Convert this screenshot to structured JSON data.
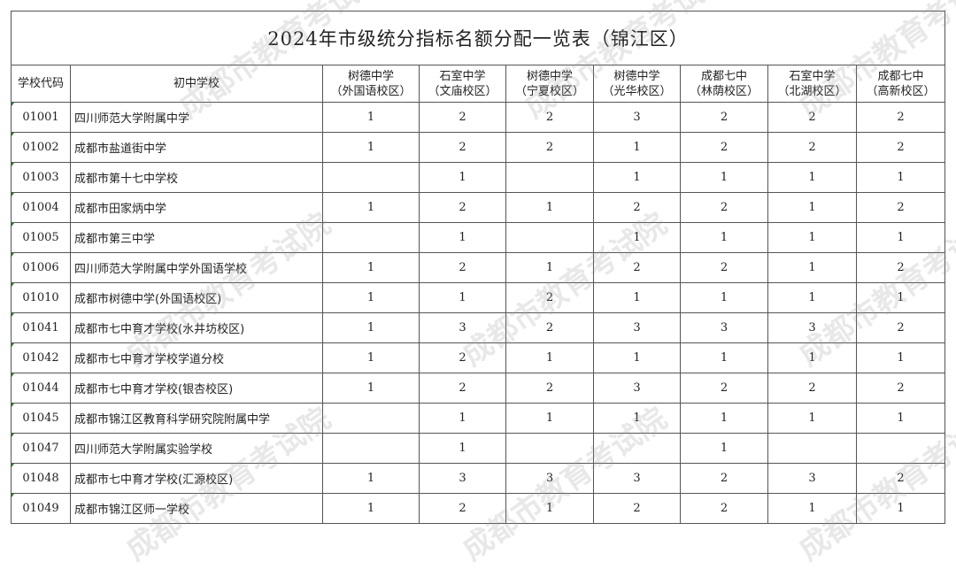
{
  "title": "2024年市级统分指标名额分配一览表（锦江区）",
  "watermark": "成都市教育考试院",
  "headers": {
    "code": "学校代码",
    "school": "初中学校",
    "columns": [
      {
        "l1": "树德中学",
        "l2": "（外国语校区）"
      },
      {
        "l1": "石室中学",
        "l2": "（文庙校区）"
      },
      {
        "l1": "树德中学",
        "l2": "（宁夏校区）"
      },
      {
        "l1": "树德中学",
        "l2": "（光华校区）"
      },
      {
        "l1": "成都七中",
        "l2": "（林荫校区）"
      },
      {
        "l1": "石室中学",
        "l2": "（北湖校区）"
      },
      {
        "l1": "成都七中",
        "l2": "（高新校区）"
      }
    ]
  },
  "rows": [
    {
      "code": "01001",
      "name": "四川师范大学附属中学",
      "v": [
        "1",
        "2",
        "2",
        "3",
        "2",
        "2",
        "2"
      ]
    },
    {
      "code": "01002",
      "name": "成都市盐道街中学",
      "v": [
        "1",
        "2",
        "2",
        "1",
        "2",
        "2",
        "2"
      ]
    },
    {
      "code": "01003",
      "name": "成都市第十七中学校",
      "v": [
        "",
        "1",
        "",
        "1",
        "1",
        "1",
        "1"
      ]
    },
    {
      "code": "01004",
      "name": "成都市田家炳中学",
      "v": [
        "1",
        "2",
        "1",
        "2",
        "2",
        "1",
        "2"
      ]
    },
    {
      "code": "01005",
      "name": "成都市第三中学",
      "v": [
        "",
        "1",
        "",
        "1",
        "1",
        "1",
        "1"
      ]
    },
    {
      "code": "01006",
      "name": "四川师范大学附属中学外国语学校",
      "v": [
        "1",
        "2",
        "1",
        "2",
        "2",
        "1",
        "2"
      ]
    },
    {
      "code": "01010",
      "name": "成都市树德中学(外国语校区)",
      "v": [
        "1",
        "1",
        "2",
        "1",
        "1",
        "1",
        "1"
      ]
    },
    {
      "code": "01041",
      "name": "成都市七中育才学校(水井坊校区)",
      "v": [
        "1",
        "3",
        "2",
        "3",
        "3",
        "3",
        "2"
      ]
    },
    {
      "code": "01042",
      "name": "成都市七中育才学校学道分校",
      "v": [
        "1",
        "2",
        "1",
        "1",
        "1",
        "1",
        "1"
      ]
    },
    {
      "code": "01044",
      "name": "成都市七中育才学校(银杏校区)",
      "v": [
        "1",
        "2",
        "2",
        "3",
        "2",
        "2",
        "2"
      ]
    },
    {
      "code": "01045",
      "name": "成都市锦江区教育科学研究院附属中学",
      "v": [
        "",
        "1",
        "1",
        "1",
        "1",
        "1",
        "1"
      ]
    },
    {
      "code": "01047",
      "name": "四川师范大学附属实验学校",
      "v": [
        "",
        "1",
        "",
        "",
        "1",
        "",
        ""
      ]
    },
    {
      "code": "01048",
      "name": "成都市七中育才学校(汇源校区)",
      "v": [
        "1",
        "3",
        "3",
        "3",
        "2",
        "3",
        "2"
      ]
    },
    {
      "code": "01049",
      "name": "成都市锦江区师一学校",
      "v": [
        "1",
        "2",
        "1",
        "2",
        "2",
        "1",
        "1"
      ]
    }
  ]
}
